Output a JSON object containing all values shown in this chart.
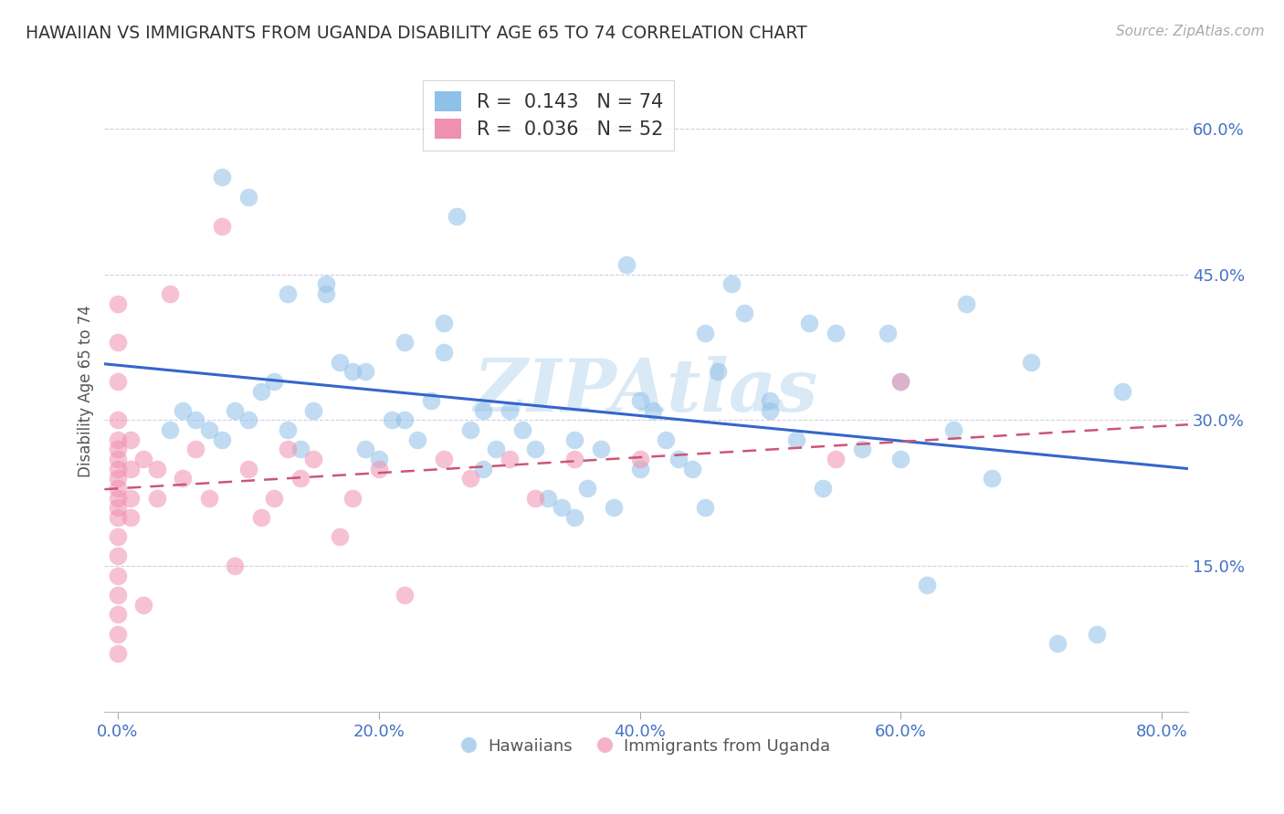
{
  "title": "HAWAIIAN VS IMMIGRANTS FROM UGANDA DISABILITY AGE 65 TO 74 CORRELATION CHART",
  "source": "Source: ZipAtlas.com",
  "ylabel": "Disability Age 65 to 74",
  "xlabel_ticks": [
    "0.0%",
    "20.0%",
    "40.0%",
    "60.0%",
    "80.0%"
  ],
  "xlabel_tick_vals": [
    0.0,
    0.2,
    0.4,
    0.6,
    0.8
  ],
  "ytick_labels": [
    "15.0%",
    "30.0%",
    "45.0%",
    "60.0%"
  ],
  "ytick_vals": [
    0.15,
    0.3,
    0.45,
    0.6
  ],
  "xlim": [
    -0.01,
    0.82
  ],
  "ylim": [
    0.0,
    0.66
  ],
  "hawaiians_x": [
    0.04,
    0.05,
    0.06,
    0.07,
    0.08,
    0.09,
    0.1,
    0.11,
    0.12,
    0.13,
    0.14,
    0.15,
    0.16,
    0.17,
    0.18,
    0.19,
    0.2,
    0.21,
    0.22,
    0.23,
    0.24,
    0.25,
    0.26,
    0.27,
    0.28,
    0.29,
    0.3,
    0.31,
    0.32,
    0.33,
    0.34,
    0.35,
    0.36,
    0.37,
    0.38,
    0.39,
    0.4,
    0.41,
    0.42,
    0.43,
    0.44,
    0.45,
    0.46,
    0.47,
    0.48,
    0.5,
    0.52,
    0.53,
    0.55,
    0.57,
    0.59,
    0.6,
    0.62,
    0.64,
    0.65,
    0.67,
    0.7,
    0.72,
    0.75,
    0.77,
    0.08,
    0.1,
    0.13,
    0.16,
    0.19,
    0.22,
    0.25,
    0.28,
    0.35,
    0.4,
    0.45,
    0.5,
    0.54,
    0.6
  ],
  "hawaiians_y": [
    0.29,
    0.31,
    0.3,
    0.29,
    0.28,
    0.31,
    0.3,
    0.33,
    0.34,
    0.29,
    0.27,
    0.31,
    0.44,
    0.36,
    0.35,
    0.27,
    0.26,
    0.3,
    0.38,
    0.28,
    0.32,
    0.37,
    0.51,
    0.29,
    0.25,
    0.27,
    0.31,
    0.29,
    0.27,
    0.22,
    0.21,
    0.28,
    0.23,
    0.27,
    0.21,
    0.46,
    0.32,
    0.31,
    0.28,
    0.26,
    0.25,
    0.39,
    0.35,
    0.44,
    0.41,
    0.32,
    0.28,
    0.4,
    0.39,
    0.27,
    0.39,
    0.26,
    0.13,
    0.29,
    0.42,
    0.24,
    0.36,
    0.07,
    0.08,
    0.33,
    0.55,
    0.53,
    0.43,
    0.43,
    0.35,
    0.3,
    0.4,
    0.31,
    0.2,
    0.25,
    0.21,
    0.31,
    0.23,
    0.34
  ],
  "ugandans_x": [
    0.0,
    0.0,
    0.0,
    0.0,
    0.0,
    0.0,
    0.0,
    0.0,
    0.0,
    0.0,
    0.0,
    0.0,
    0.0,
    0.0,
    0.0,
    0.0,
    0.0,
    0.0,
    0.0,
    0.0,
    0.01,
    0.01,
    0.01,
    0.01,
    0.02,
    0.02,
    0.03,
    0.03,
    0.04,
    0.05,
    0.06,
    0.07,
    0.08,
    0.09,
    0.1,
    0.11,
    0.12,
    0.13,
    0.14,
    0.15,
    0.17,
    0.18,
    0.2,
    0.22,
    0.25,
    0.27,
    0.3,
    0.32,
    0.35,
    0.4,
    0.55,
    0.6
  ],
  "ugandans_y": [
    0.42,
    0.38,
    0.34,
    0.3,
    0.28,
    0.27,
    0.26,
    0.25,
    0.24,
    0.23,
    0.22,
    0.21,
    0.2,
    0.18,
    0.16,
    0.14,
    0.12,
    0.1,
    0.08,
    0.06,
    0.28,
    0.25,
    0.22,
    0.2,
    0.26,
    0.11,
    0.25,
    0.22,
    0.43,
    0.24,
    0.27,
    0.22,
    0.5,
    0.15,
    0.25,
    0.2,
    0.22,
    0.27,
    0.24,
    0.26,
    0.18,
    0.22,
    0.25,
    0.12,
    0.26,
    0.24,
    0.26,
    0.22,
    0.26,
    0.26,
    0.26,
    0.34
  ],
  "hawaiians_color": "#8fc0e8",
  "ugandans_color": "#f090b0",
  "hawaiians_line_color": "#3366cc",
  "ugandans_line_color": "#cc5577",
  "watermark": "ZIPAtlas",
  "watermark_color": "#d0e4f4",
  "background_color": "#ffffff",
  "grid_color": "#d0d0e0",
  "title_color": "#333333",
  "axis_color": "#4472c4",
  "r_hawaiians": 0.143,
  "n_hawaiians": 74,
  "r_ugandans": 0.036,
  "n_ugandans": 52,
  "legend_r_color": "#0066cc",
  "legend_n_color": "#cc0000"
}
